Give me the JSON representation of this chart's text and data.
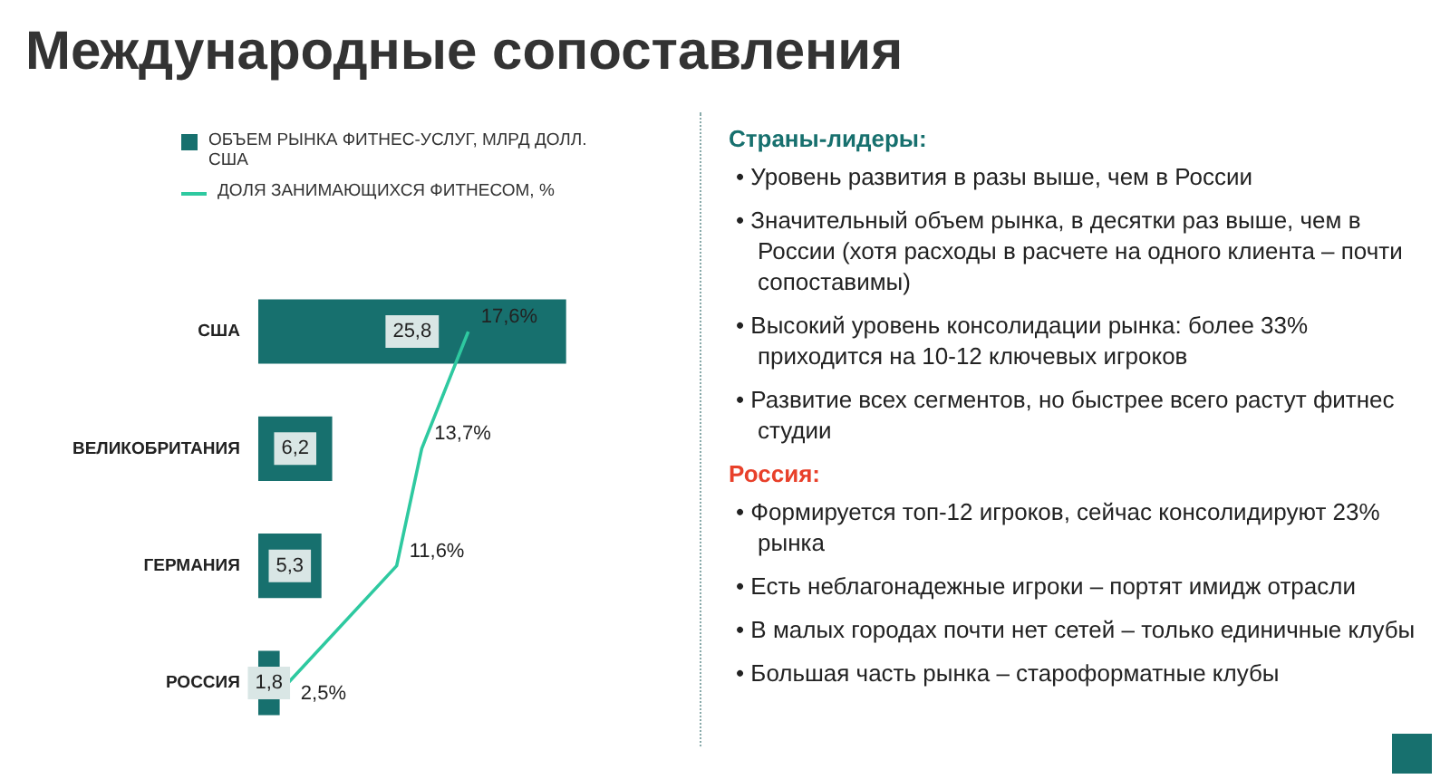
{
  "chart_data": {
    "type": "bar",
    "orientation": "horizontal",
    "title": "Международные сопоставления",
    "categories": [
      "США",
      "ВЕЛИКОБРИТАНИЯ",
      "ГЕРМАНИЯ",
      "РОССИЯ"
    ],
    "series": [
      {
        "name": "ОБЪЕМ РЫНКА ФИТНЕС-УСЛУГ, МЛРД ДОЛЛ. США",
        "color": "#17706e",
        "values": [
          25.8,
          6.2,
          5.3,
          1.8
        ],
        "value_labels": [
          "25,8",
          "6,2",
          "5,3",
          "1,8"
        ]
      },
      {
        "name": "ДОЛЯ ЗАНИМАЮЩИХСЯ ФИТНЕСОМ, %",
        "type": "line",
        "color": "#2ec9a0",
        "values": [
          17.6,
          13.7,
          11.6,
          2.5
        ],
        "value_labels": [
          "17,6%",
          "13,7%",
          "11,6%",
          "2,5%"
        ]
      }
    ],
    "tick_labels": "y",
    "grid": false,
    "legend": "top",
    "marker": "none",
    "annotations": [
      "Страны-лидеры:",
      "• Уровень развития в разы выше, чем в России",
      "• Значительный объем рынка, в десятки раз выше, чем в России (хотя расходы в расчете на одного клиента – почти сопоставимы)",
      "• Высокий уровень консолидации рынка: более 33% приходится на 10-12 ключевых игроков",
      "• Развитие всех сегментов, но быстрее всего растут фитнес студии",
      "Россия:",
      "• Формируется топ-12 игроков, сейчас консолидируют 23% рынка",
      "• Есть неблагонадежные игроки – портят имидж отрасли",
      "• В малых городах почти нет сетей – только единичные клубы",
      "• Большая часть рынка – староформатные клубы"
    ]
  }
}
